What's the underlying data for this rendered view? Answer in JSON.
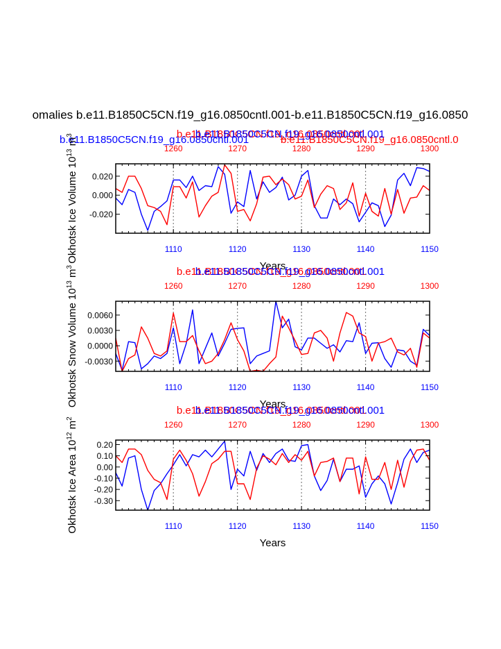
{
  "figure": {
    "main_title": "omalies b.e11.B1850C5CN.f19_g16.0850cntl.001-b.e11.B1850C5CN.f19_g16.0850",
    "colors": {
      "blue": "#0000ff",
      "red": "#ff0000",
      "black": "#000000",
      "grid": "#808080"
    },
    "panel1_extra": {
      "blue_title": "b.e11.B1850C5CN.f19_g16.0850cntl.001",
      "red_title": "b.e11.B1850C5CN.f19_g16.0850cntl.0"
    }
  },
  "chart_data": [
    {
      "type": "line",
      "title_red": "b.e11.B1850C5CN.f19_g16.0850cntl.001",
      "title_blue": "b.e11.B1850C5CN.f19_g16.0850cntl.001",
      "ylabel": "Okhotsk Ice Volume 10",
      "ylabel_sup": "13",
      "ylabel_unit": "m",
      "ylabel_unit_sup": "3",
      "xlabel": "Years",
      "xlim_bottom": [
        1101,
        1150
      ],
      "xlim_top": [
        1251,
        1300
      ],
      "ylim": [
        -0.04,
        0.033
      ],
      "yticks": [
        -0.02,
        0.0,
        0.02
      ],
      "ytick_labels": [
        "-0.020",
        "0.000",
        "0.020"
      ],
      "xticks_bottom": [
        1110,
        1120,
        1130,
        1140,
        1150
      ],
      "xticks_top": [
        1260,
        1270,
        1280,
        1290,
        1300
      ],
      "series": [
        {
          "name": "blue",
          "color": "#0000ff",
          "x_start": 1101,
          "values": [
            -0.003,
            -0.01,
            0.006,
            0.003,
            -0.02,
            -0.037,
            -0.017,
            -0.012,
            -0.006,
            0.016,
            0.016,
            0.008,
            0.02,
            0.005,
            0.01,
            0.009,
            0.03,
            0.022,
            -0.019,
            -0.007,
            -0.012,
            0.026,
            -0.004,
            0.014,
            0.003,
            0.008,
            0.019,
            -0.005,
            0.0,
            0.02,
            0.026,
            -0.011,
            -0.024,
            -0.024,
            -0.004,
            -0.01,
            -0.004,
            -0.009,
            -0.028,
            -0.018,
            -0.008,
            -0.011,
            -0.033,
            -0.021,
            0.016,
            0.023,
            0.01,
            0.029,
            0.028,
            0.025
          ]
        },
        {
          "name": "red",
          "color": "#ff0000",
          "x_start": 1101,
          "values": [
            0.007,
            0.003,
            0.02,
            0.02,
            0.007,
            -0.011,
            -0.013,
            -0.017,
            -0.031,
            0.009,
            0.009,
            -0.003,
            0.014,
            -0.023,
            -0.011,
            -0.001,
            0.003,
            0.032,
            0.023,
            -0.017,
            -0.015,
            -0.027,
            -0.009,
            0.019,
            0.02,
            0.011,
            0.017,
            0.011,
            -0.004,
            -0.001,
            0.016,
            -0.013,
            0.001,
            0.01,
            0.007,
            -0.015,
            -0.008,
            0.013,
            -0.022,
            0.002,
            -0.017,
            -0.022,
            0.007,
            -0.02,
            0.006,
            -0.019,
            -0.003,
            -0.002,
            0.01,
            0.005
          ]
        }
      ]
    },
    {
      "type": "line",
      "title_red": "b.e11.B1850C5CN.f19_g16.0850cntl.001",
      "title_blue": "b.e11.B1850C5CN.f19_g16.0850cntl.001",
      "ylabel": "Okhotsk Snow Volume 10",
      "ylabel_sup": "13",
      "ylabel_unit": "m",
      "ylabel_unit_sup": "3",
      "xlabel": "Years",
      "xlim_bottom": [
        1101,
        1150
      ],
      "xlim_top": [
        1251,
        1300
      ],
      "ylim": [
        -0.005,
        0.0087
      ],
      "yticks": [
        -0.003,
        0.0,
        0.003,
        0.006
      ],
      "ytick_labels": [
        "-0.0030",
        "0.0000",
        "0.0030",
        "0.0060"
      ],
      "xticks_bottom": [
        1110,
        1120,
        1130,
        1140,
        1150
      ],
      "xticks_top": [
        1260,
        1270,
        1280,
        1290,
        1300
      ],
      "series": [
        {
          "name": "blue",
          "color": "#0000ff",
          "x_start": 1101,
          "values": [
            -0.0015,
            -0.0048,
            0.0008,
            0.0006,
            -0.0045,
            -0.0035,
            -0.002,
            -0.0025,
            -0.0015,
            0.0035,
            -0.0035,
            0.0004,
            0.007,
            -0.0035,
            -0.0005,
            0.0025,
            -0.002,
            0.0005,
            0.0032,
            0.0034,
            0.0035,
            -0.0035,
            -0.002,
            -0.0015,
            -0.001,
            0.0087,
            0.0035,
            0.0052,
            -0.0002,
            -0.0008,
            0.0015,
            0.0015,
            0.0005,
            -0.0005,
            0.0002,
            -0.0012,
            0.001,
            0.0008,
            0.0045,
            -0.0015,
            0.0005,
            0.0006,
            -0.0025,
            -0.0042,
            -0.0008,
            -0.001,
            -0.003,
            -0.0038,
            0.0032,
            0.002
          ]
        },
        {
          "name": "red",
          "color": "#ff0000",
          "x_start": 1101,
          "values": [
            0.0015,
            -0.005,
            -0.0025,
            -0.0018,
            0.0037,
            0.0015,
            -0.0015,
            -0.002,
            -0.001,
            0.0064,
            0.0008,
            0.0008,
            0.002,
            -0.001,
            -0.0035,
            -0.003,
            -0.0015,
            0.0012,
            0.0045,
            0.0012,
            -0.001,
            -0.005,
            -0.0048,
            -0.005,
            -0.0035,
            -0.0022,
            0.0058,
            0.0035,
            0.001,
            -0.0017,
            -0.0015,
            0.0025,
            0.003,
            0.0015,
            -0.003,
            0.0025,
            0.0065,
            0.0058,
            0.0025,
            0.0018,
            -0.003,
            0.0005,
            0.0008,
            0.0015,
            -0.0012,
            -0.0018,
            -0.0005,
            -0.0042,
            0.0025,
            0.0015
          ]
        }
      ]
    },
    {
      "type": "line",
      "title_red": "b.e11.B1850C5CN.f19_g16.0850cntl.001",
      "title_blue": "b.e11.B1850C5CN.f19_g16.0850cntl.001",
      "ylabel": "Okhotsk Ice Area 10",
      "ylabel_sup": "12",
      "ylabel_unit": "m",
      "ylabel_unit_sup": "2",
      "xlabel": "Years",
      "xlim_bottom": [
        1101,
        1150
      ],
      "xlim_top": [
        1251,
        1300
      ],
      "ylim": [
        -0.385,
        0.24
      ],
      "yticks": [
        -0.3,
        -0.2,
        -0.1,
        0.0,
        0.1,
        0.2
      ],
      "ytick_labels": [
        "-0.30",
        "-0.20",
        "-0.10",
        "0.00",
        "0.10",
        "0.20"
      ],
      "xticks_bottom": [
        1110,
        1120,
        1130,
        1140,
        1150
      ],
      "xticks_top": [
        1260,
        1270,
        1280,
        1290,
        1300
      ],
      "series": [
        {
          "name": "blue",
          "color": "#0000ff",
          "x_start": 1101,
          "values": [
            -0.05,
            -0.17,
            0.08,
            0.1,
            -0.2,
            -0.385,
            -0.21,
            -0.15,
            -0.06,
            0.02,
            0.11,
            0.01,
            0.11,
            0.09,
            0.15,
            0.09,
            0.16,
            0.23,
            -0.2,
            -0.02,
            -0.08,
            0.14,
            -0.03,
            0.12,
            0.04,
            0.12,
            0.16,
            0.06,
            0.05,
            0.19,
            0.2,
            -0.08,
            -0.21,
            -0.12,
            0.07,
            -0.13,
            -0.02,
            -0.02,
            0.01,
            -0.27,
            -0.15,
            -0.08,
            -0.15,
            -0.33,
            -0.14,
            0.07,
            0.16,
            0.04,
            0.13,
            0.15
          ]
        },
        {
          "name": "red",
          "color": "#ff0000",
          "x_start": 1101,
          "values": [
            0.1,
            0.04,
            0.16,
            0.16,
            0.11,
            -0.03,
            -0.11,
            -0.14,
            -0.29,
            0.07,
            0.15,
            0.06,
            -0.06,
            -0.26,
            -0.13,
            0.03,
            0.07,
            0.14,
            0.14,
            -0.15,
            -0.15,
            -0.29,
            -0.01,
            0.1,
            0.07,
            0.02,
            0.12,
            0.04,
            0.11,
            0.06,
            0.14,
            -0.08,
            0.04,
            0.05,
            0.08,
            -0.13,
            0.08,
            0.08,
            -0.24,
            0.09,
            -0.11,
            -0.11,
            0.04,
            -0.2,
            0.06,
            -0.18,
            0.05,
            0.15,
            0.16,
            0.06
          ]
        }
      ]
    }
  ]
}
